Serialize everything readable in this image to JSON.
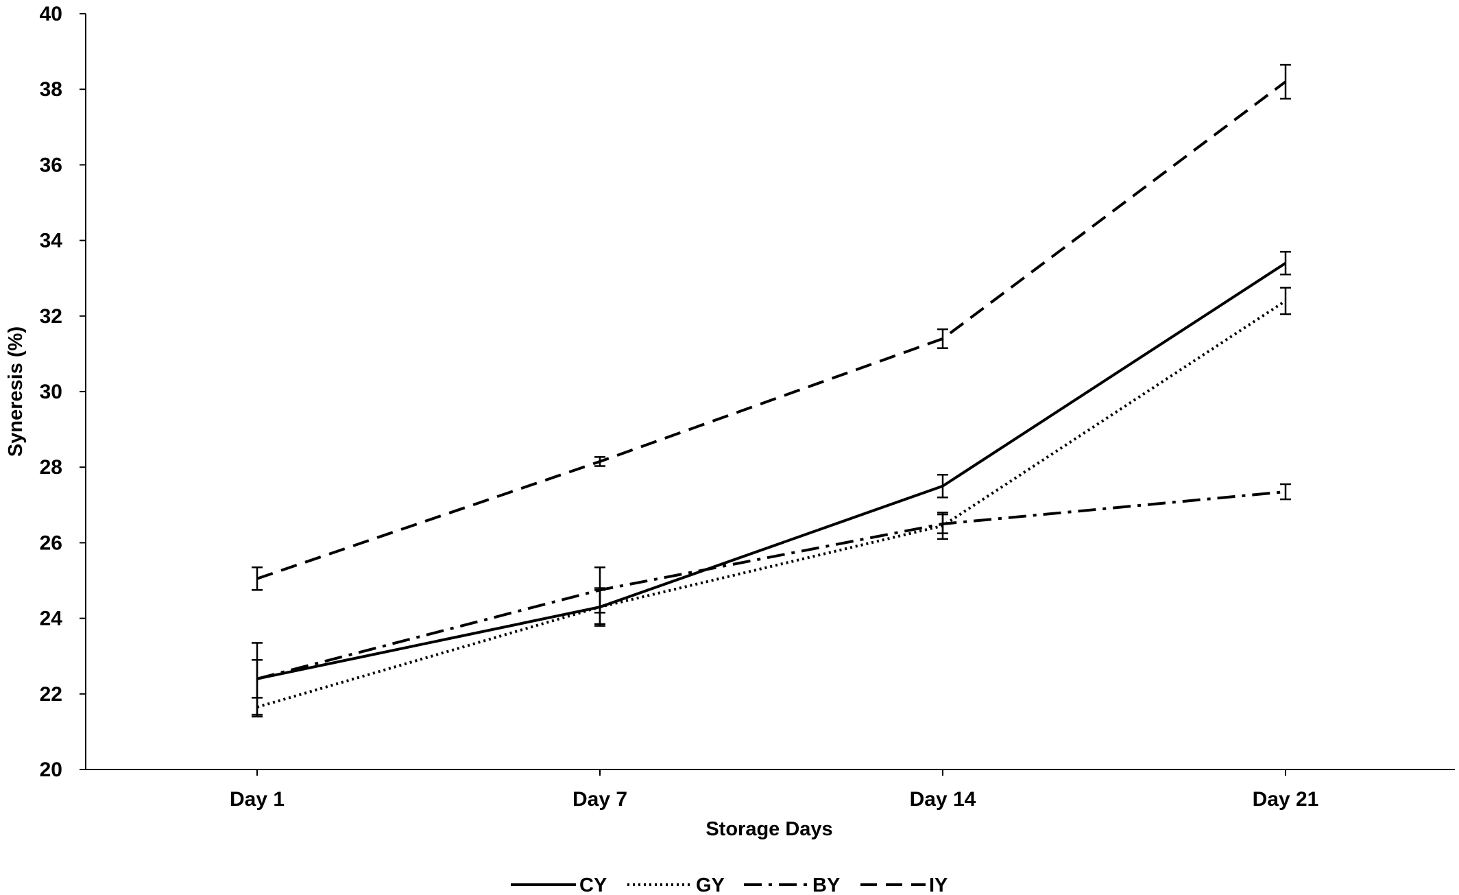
{
  "chart_data": {
    "type": "line",
    "title": "",
    "xlabel": "Storage Days",
    "ylabel": "Syneresis (%)",
    "ylim": [
      20,
      40
    ],
    "yticks": [
      20,
      22,
      24,
      26,
      28,
      30,
      32,
      34,
      36,
      38,
      40
    ],
    "categories": [
      "Day 1",
      "Day 7",
      "Day 14",
      "Day 21"
    ],
    "grid": false,
    "legend_position": "bottom",
    "series": [
      {
        "name": "CY",
        "dash": "solid",
        "values": [
          22.4,
          24.3,
          27.5,
          33.4
        ],
        "errors": [
          0.95,
          0.5,
          0.3,
          0.3
        ]
      },
      {
        "name": "GY",
        "dash": "dotted",
        "values": [
          21.65,
          24.3,
          26.45,
          32.4
        ],
        "errors": [
          0.25,
          0.45,
          0.35,
          0.35
        ]
      },
      {
        "name": "BY",
        "dash": "dashdot",
        "values": [
          22.4,
          24.75,
          26.5,
          27.35
        ],
        "errors": [
          0.5,
          0.6,
          0.25,
          0.2
        ]
      },
      {
        "name": "IY",
        "dash": "dashed",
        "values": [
          25.05,
          28.15,
          31.4,
          38.2
        ],
        "errors": [
          0.3,
          0.12,
          0.25,
          0.45
        ]
      }
    ]
  }
}
